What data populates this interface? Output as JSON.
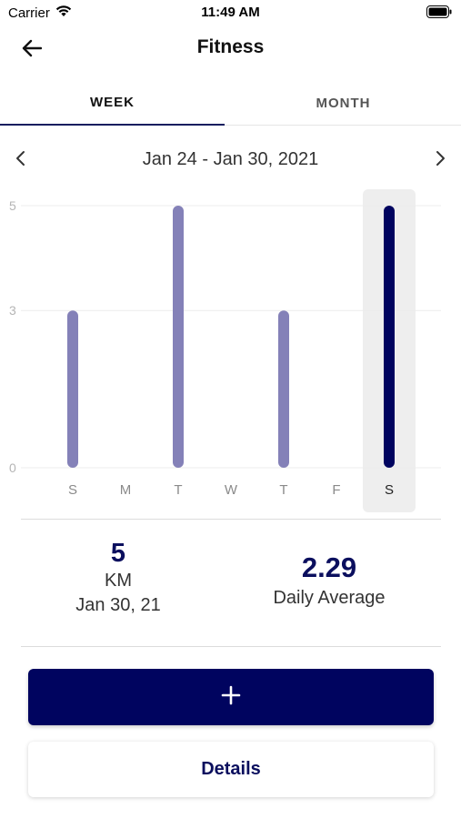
{
  "status_bar": {
    "carrier": "Carrier",
    "time": "11:49 AM"
  },
  "nav": {
    "title": "Fitness",
    "back_icon": "arrow-left-icon"
  },
  "tabs": [
    {
      "label": "WEEK",
      "active": true
    },
    {
      "label": "MONTH",
      "active": false
    }
  ],
  "range": {
    "label": "Jan 24 - Jan 30, 2021"
  },
  "chart_data": {
    "type": "bar",
    "categories": [
      "S",
      "M",
      "T",
      "W",
      "T",
      "F",
      "S"
    ],
    "values": [
      3,
      0,
      5,
      0,
      3,
      0,
      5
    ],
    "y_ticks": [
      "0",
      "3",
      "5"
    ],
    "ylim": [
      0,
      5
    ],
    "selected_index": 6,
    "bar_color": "#8481b8",
    "selected_color": "#00045f",
    "grid": true
  },
  "stats": {
    "selected_value": "5",
    "selected_unit": "KM",
    "selected_date": "Jan 30, 21",
    "average_value": "2.29",
    "average_label": "Daily Average"
  },
  "actions": {
    "add_label": "+",
    "details_label": "Details"
  },
  "colors": {
    "accent": "#00045f",
    "tab_indicator": "#131d5f"
  }
}
